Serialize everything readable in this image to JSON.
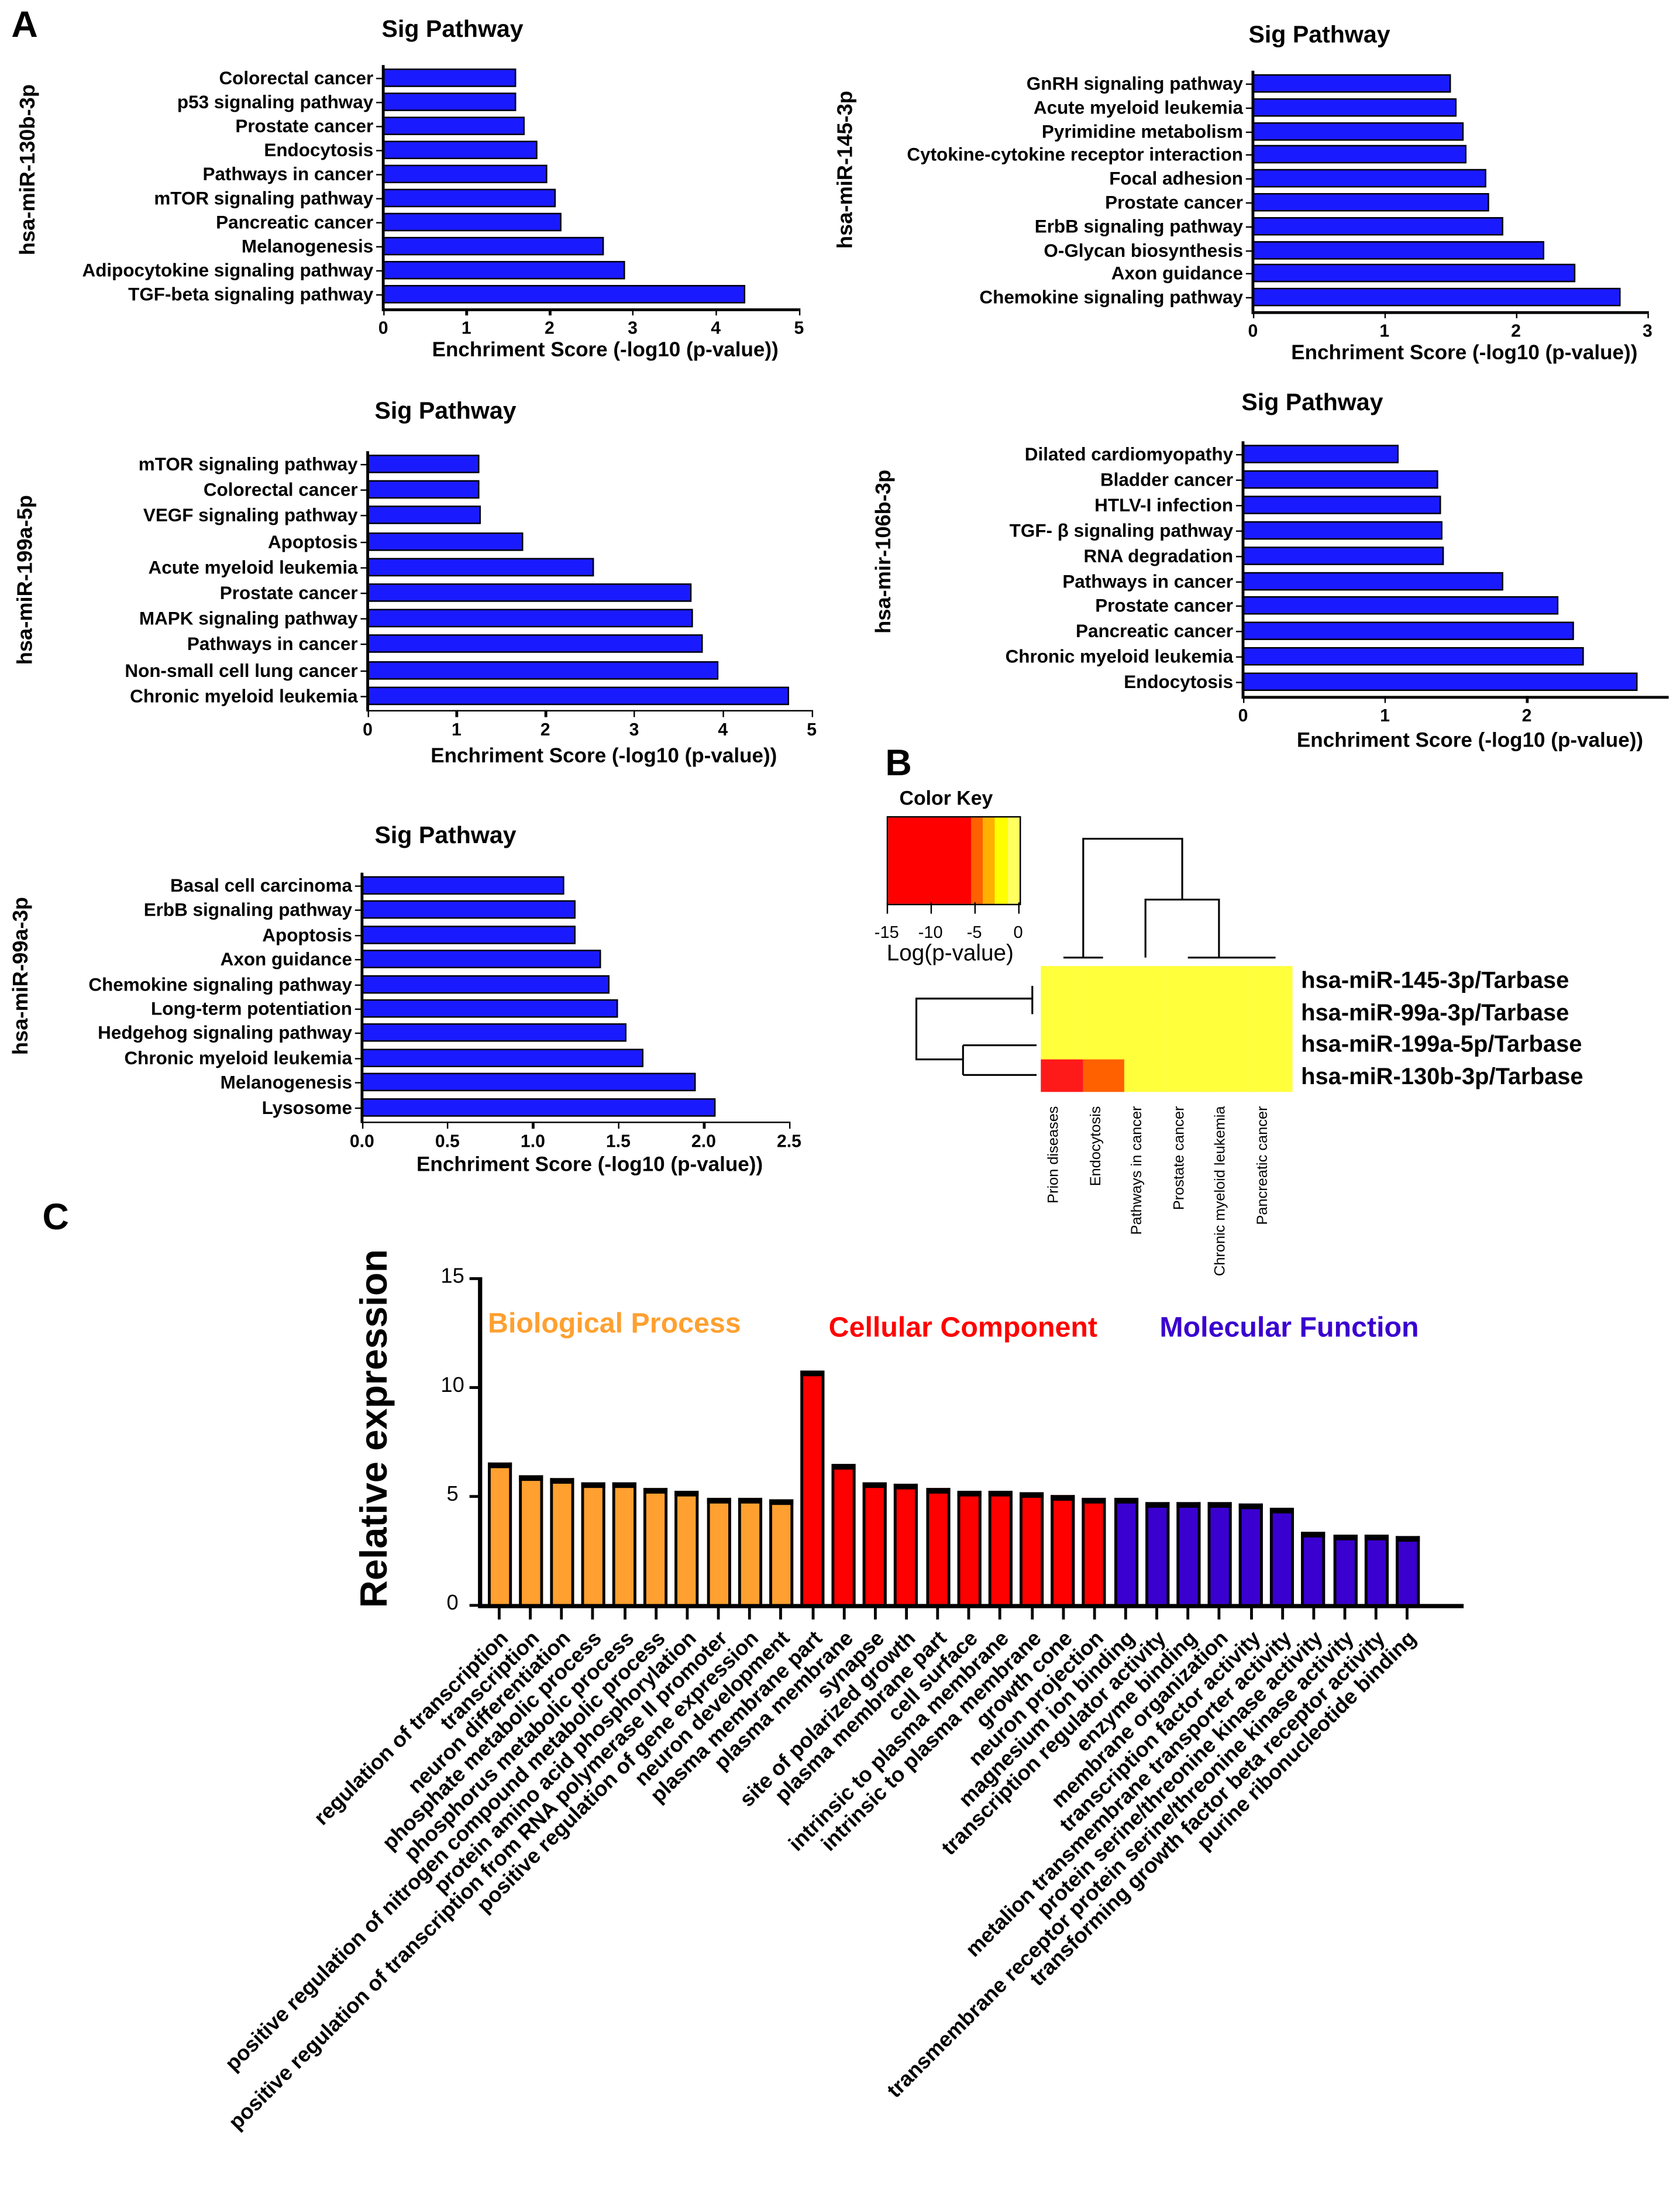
{
  "panels": {
    "a": "A",
    "b": "B",
    "c": "C"
  },
  "chart_data": [
    {
      "type": "bar",
      "orientation": "horizontal",
      "title": "Sig Pathway",
      "ylabel": "hsa-miR-130b-3p",
      "xlabel": "Enchriment Score (-log10 (p-value))",
      "categories": [
        "Colorectal cancer",
        "p53 signaling pathway",
        "Prostate cancer",
        "Endocytosis",
        "Pathways in cancer",
        "mTOR signaling pathway",
        "Pancreatic cancer",
        "Melanogenesis",
        "Adipocytokine signaling pathway",
        "TGF-beta signaling pathway"
      ],
      "values": [
        1.6,
        1.6,
        1.7,
        1.85,
        1.97,
        2.07,
        2.15,
        2.65,
        2.9,
        4.35
      ],
      "xlim": [
        0,
        5
      ],
      "xticks": [
        "0",
        "1",
        "2",
        "3",
        "4",
        "5"
      ],
      "color": "#1a1aff"
    },
    {
      "type": "bar",
      "orientation": "horizontal",
      "title": "Sig Pathway",
      "ylabel": "hsa-miR-145-3p",
      "xlabel": "Enchriment Score (-log10 (p-value))",
      "categories": [
        "GnRH signaling pathway",
        "Acute myeloid leukemia",
        "Pyrimidine metabolism",
        "Cytokine-cytokine receptor interaction",
        "Focal adhesion",
        "Prostate cancer",
        "ErbB signaling pathway",
        "O-Glycan biosynthesis",
        "Axon guidance",
        "Chemokine signaling pathway"
      ],
      "values": [
        1.5,
        1.55,
        1.6,
        1.62,
        1.77,
        1.8,
        1.9,
        2.22,
        2.45,
        2.8
      ],
      "xlim": [
        0,
        3
      ],
      "xticks": [
        "0",
        "1",
        "2",
        "3"
      ],
      "color": "#1a1aff"
    },
    {
      "type": "bar",
      "orientation": "horizontal",
      "title": "Sig Pathway",
      "ylabel": "hsa-miR-199a-5p",
      "xlabel": "Enchriment Score (-log10 (p-value))",
      "categories": [
        "mTOR signaling pathway",
        "Colorectal cancer",
        "VEGF signaling pathway",
        "Apoptosis",
        "Acute myeloid leukemia",
        "Prostate cancer",
        "MAPK signaling pathway",
        "Pathways in cancer",
        "Non-small cell lung cancer",
        "Chronic myeloid leukemia"
      ],
      "values": [
        1.25,
        1.25,
        1.28,
        1.75,
        2.55,
        3.65,
        3.67,
        3.77,
        3.95,
        4.75
      ],
      "xlim": [
        0,
        5
      ],
      "xticks": [
        "0",
        "1",
        "2",
        "3",
        "4",
        "5"
      ],
      "color": "#1a1aff"
    },
    {
      "type": "bar",
      "orientation": "horizontal",
      "title": "Sig Pathway",
      "ylabel": "hsa-mir-106b-3p",
      "xlabel": "Enchriment Score (-log10 (p-value))",
      "categories": [
        "Dilated cardiomyopathy",
        "Bladder cancer",
        "HTLV-I infection",
        "TGF- β signaling pathway",
        "RNA degradation",
        "Pathways in cancer",
        "Prostate cancer",
        "Pancreatic cancer",
        "Chronic myeloid leukemia",
        "Endocytosis"
      ],
      "values": [
        1.1,
        1.38,
        1.4,
        1.41,
        1.42,
        1.83,
        2.22,
        2.33,
        2.4,
        2.78
      ],
      "xlim": [
        0,
        3
      ],
      "xticks": [
        "0",
        "1",
        "2"
      ],
      "color": "#1a1aff"
    },
    {
      "type": "bar",
      "orientation": "horizontal",
      "title": "Sig Pathway",
      "ylabel": "hsa-miR-99a-3p",
      "xlabel": "Enchriment Score (-log10 (p-value))",
      "categories": [
        "Basal cell carcinoma",
        "ErbB signaling pathway",
        "Apoptosis",
        "Axon guidance",
        "Chemokine signaling pathway",
        "Long-term potentiation",
        "Hedgehog signaling pathway",
        "Chronic myeloid leukemia",
        "Melanogenesis",
        "Lysosome"
      ],
      "values": [
        1.18,
        1.25,
        1.25,
        1.4,
        1.45,
        1.5,
        1.55,
        1.65,
        1.95,
        2.07
      ],
      "xlim": [
        0,
        2.5
      ],
      "xticks": [
        "0.0",
        "0.5",
        "1.0",
        "1.5",
        "2.0",
        "2.5"
      ],
      "color": "#1a1aff"
    },
    {
      "type": "heatmap",
      "color_key_title": "Color Key",
      "color_key_label": "Log(p-value)",
      "color_key_ticks": [
        "-15",
        "-10",
        "-5",
        "0"
      ],
      "rows": [
        "hsa-miR-145-3p/Tarbase",
        "hsa-miR-99a-3p/Tarbase",
        "hsa-miR-199a-5p/Tarbase",
        "hsa-miR-130b-3p/Tarbase"
      ],
      "columns": [
        "Prion diseases",
        "Endocytosis",
        "Pathways in cancer",
        "Prostate cancer",
        "Chronic myeloid leukemia",
        "Pancreatic cancer"
      ],
      "values": [
        [
          -1,
          -1,
          -1,
          -1,
          -1,
          -1
        ],
        [
          -1,
          -1,
          -1,
          -1,
          -1,
          -1
        ],
        [
          -1,
          -1,
          -1,
          -1,
          -1,
          -1
        ],
        [
          -15,
          -5,
          -1,
          -1,
          -1,
          -1
        ]
      ],
      "range": [
        -15,
        0
      ]
    },
    {
      "type": "bar",
      "title": "",
      "ylabel": "Relative expression",
      "ylim": [
        0,
        15
      ],
      "yticks": [
        "0",
        "5",
        "10",
        "15"
      ],
      "groups": [
        {
          "name": "Biological Process",
          "color": "#ffa030"
        },
        {
          "name": "Cellular Component",
          "color": "#ff0000"
        },
        {
          "name": "Molecular Function",
          "color": "#3a00d0"
        }
      ],
      "categories": [
        "regulation of transcription",
        "transcription",
        "neuron differentiation",
        "phosphate metabolic process",
        "phosphorus metabolic process",
        "positive regulation of nitrogen compound metabolic process",
        "protein amino acid phosphorylation",
        "positive regulation of transcription from RNA polymerase II promoter",
        "positive regulation of gene expression",
        "neuron development",
        "plasma membrane part",
        "plasma membrane",
        "synapse",
        "site of polarized growth",
        "plasma membrane part",
        "cell surface",
        "intrinsic to plasma membrane",
        "intrinsic to plasma membrane",
        "growth cone",
        "neuron projection",
        "magnesium ion binding",
        "transcription regulator activity",
        "enzyme binding",
        "membrane organization",
        "transcription factor activity",
        "metalion transmembrane transporter activity",
        "protein serine/threonine kinase activity",
        "transmembrane receptor protein serine/threonine kinase activity",
        "transforming growth factor beta receptor activity",
        "purine ribonucleotide binding"
      ],
      "group_index": [
        0,
        0,
        0,
        0,
        0,
        0,
        0,
        0,
        0,
        0,
        1,
        1,
        1,
        1,
        1,
        1,
        1,
        1,
        1,
        1,
        2,
        2,
        2,
        2,
        2,
        2,
        2,
        2,
        2,
        2
      ],
      "values": [
        6.5,
        5.9,
        5.8,
        5.6,
        5.6,
        5.3,
        5.2,
        4.85,
        4.85,
        4.8,
        10.7,
        6.4,
        5.6,
        5.55,
        5.3,
        5.2,
        5.2,
        5.15,
        5.0,
        4.85,
        4.9,
        4.7,
        4.7,
        4.7,
        4.6,
        4.4,
        3.3,
        3.2,
        3.2,
        3.1
      ]
    }
  ]
}
